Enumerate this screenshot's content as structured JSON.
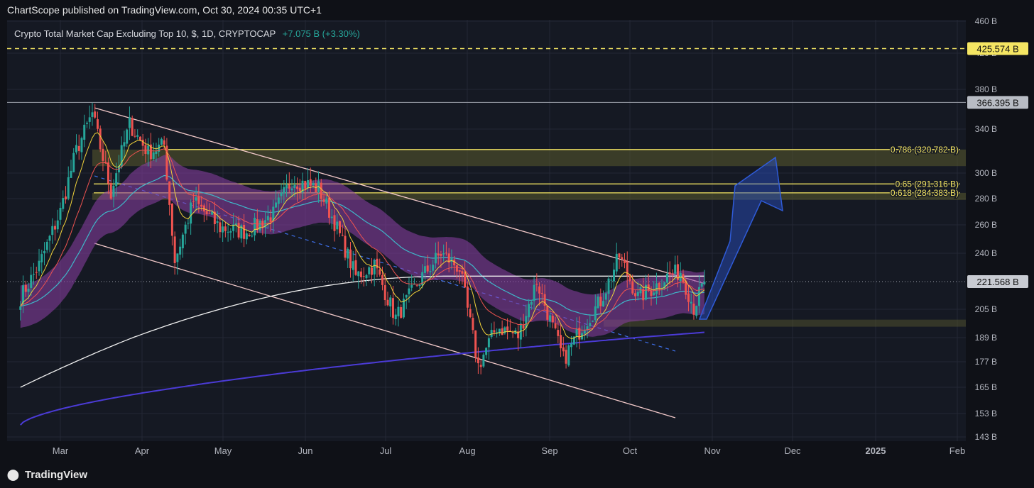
{
  "header": {
    "published": "ChartScope published on TradingView.com, Oct 30, 2024 00:35 UTC+1"
  },
  "legend": {
    "title": "Crypto Total Market Cap Excluding Top 10, $, 1D, CRYPTOCAP",
    "change": "+7.075 B (+3.30%)"
  },
  "footer": {
    "brand": "TradingView"
  },
  "colors": {
    "up": "#26a69a",
    "down": "#ef5350",
    "fib": "#f5e663",
    "band": "#8e3fa8",
    "ma200": "#4b3bd6"
  },
  "chart_data": {
    "type": "candlestick",
    "title": "Crypto Total Market Cap Excluding Top 10, $, 1D, CRYPTOCAP",
    "x_ticks": [
      "Mar",
      "Apr",
      "May",
      "Jun",
      "Jul",
      "Aug",
      "Sep",
      "Oct",
      "Nov",
      "Dec",
      "2025",
      "Feb"
    ],
    "y_ticks": [
      "460 B",
      "420 B",
      "380 B",
      "340 B",
      "300 B",
      "280 B",
      "260 B",
      "240 B",
      "205 B",
      "189 B",
      "177 B",
      "165 B",
      "153 B",
      "143 B"
    ],
    "price_labels": [
      {
        "label": "425.574 B",
        "value": 425.574,
        "style": "dashed-yellow"
      },
      {
        "label": "366.395 B",
        "value": 366.395,
        "style": "gray"
      },
      {
        "label": "221.568 B",
        "value": 221.568,
        "style": "current"
      }
    ],
    "fib_levels": [
      {
        "label": "0.786 (320.782 B)",
        "value": 320.782
      },
      {
        "label": "0.65 (291.316 B)",
        "value": 291.316
      },
      {
        "label": "0.618 (284.383 B)",
        "value": 284.383
      }
    ],
    "last_close": 221.568,
    "change_abs": "+7.075 B",
    "change_pct": "+3.30%",
    "price_path": [
      [
        "2024-02-15",
        212
      ],
      [
        "2024-02-22",
        232
      ],
      [
        "2024-03-01",
        270
      ],
      [
        "2024-03-07",
        320
      ],
      [
        "2024-03-13",
        355
      ],
      [
        "2024-03-20",
        285
      ],
      [
        "2024-03-27",
        345
      ],
      [
        "2024-04-03",
        318
      ],
      [
        "2024-04-09",
        325
      ],
      [
        "2024-04-13",
        235
      ],
      [
        "2024-04-20",
        278
      ],
      [
        "2024-04-30",
        258
      ],
      [
        "2024-05-10",
        255
      ],
      [
        "2024-05-20",
        268
      ],
      [
        "2024-05-27",
        295
      ],
      [
        "2024-06-06",
        288
      ],
      [
        "2024-06-12",
        262
      ],
      [
        "2024-06-20",
        225
      ],
      [
        "2024-06-27",
        232
      ],
      [
        "2024-07-05",
        200
      ],
      [
        "2024-07-15",
        225
      ],
      [
        "2024-07-22",
        240
      ],
      [
        "2024-07-29",
        230
      ],
      [
        "2024-08-05",
        175
      ],
      [
        "2024-08-12",
        195
      ],
      [
        "2024-08-20",
        190
      ],
      [
        "2024-08-27",
        222
      ],
      [
        "2024-09-06",
        178
      ],
      [
        "2024-09-13",
        195
      ],
      [
        "2024-09-20",
        210
      ],
      [
        "2024-09-27",
        238
      ],
      [
        "2024-10-04",
        212
      ],
      [
        "2024-10-10",
        218
      ],
      [
        "2024-10-15",
        225
      ],
      [
        "2024-10-20",
        228
      ],
      [
        "2024-10-25",
        206
      ],
      [
        "2024-10-29",
        221.568
      ]
    ]
  }
}
